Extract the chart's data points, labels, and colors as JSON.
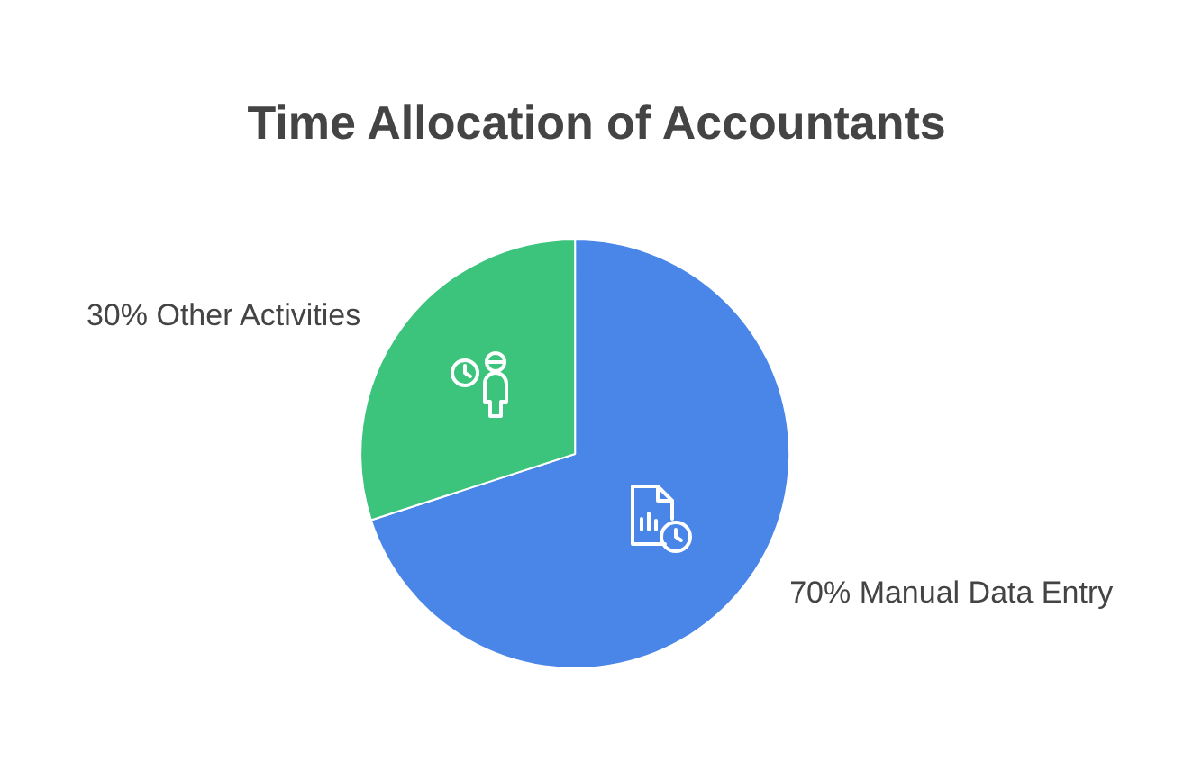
{
  "chart_data": {
    "type": "pie",
    "title": "Time Allocation of Accountants",
    "categories": [
      "Manual Data Entry",
      "Other Activities"
    ],
    "values": [
      70,
      30
    ],
    "colors": [
      "#4a86e8",
      "#3cc47c"
    ],
    "value_labels": [
      "70%",
      "30%"
    ],
    "legend": false
  }
}
